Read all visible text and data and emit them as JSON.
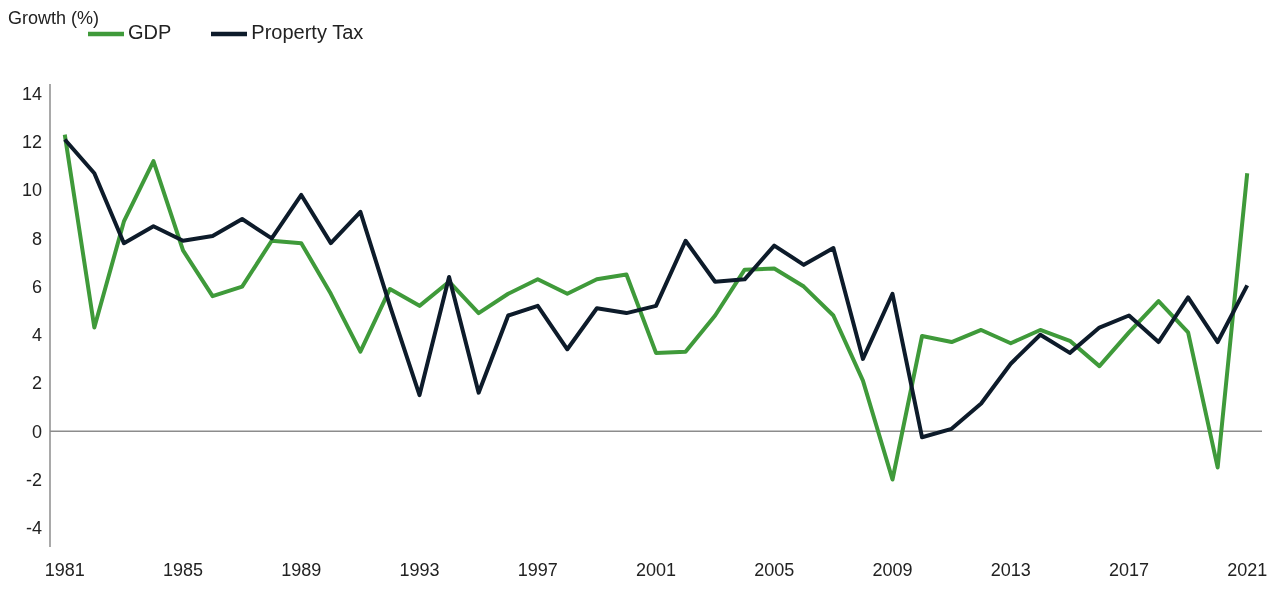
{
  "chart_data": {
    "type": "line",
    "ylabel": "Growth (%)",
    "x": [
      1981,
      1982,
      1983,
      1984,
      1985,
      1986,
      1987,
      1988,
      1989,
      1990,
      1991,
      1992,
      1993,
      1994,
      1995,
      1996,
      1997,
      1998,
      1999,
      2000,
      2001,
      2002,
      2003,
      2004,
      2005,
      2006,
      2007,
      2008,
      2009,
      2010,
      2011,
      2012,
      2013,
      2014,
      2015,
      2016,
      2017,
      2018,
      2019,
      2020,
      2021
    ],
    "series": [
      {
        "name": "GDP",
        "color": "#3f9a3a",
        "values": [
          12.3,
          4.3,
          8.7,
          11.2,
          7.5,
          5.6,
          6.0,
          7.9,
          7.8,
          5.7,
          3.3,
          5.9,
          5.2,
          6.2,
          4.9,
          5.7,
          6.3,
          5.7,
          6.3,
          6.5,
          3.25,
          3.3,
          4.8,
          6.7,
          6.75,
          6.0,
          4.8,
          2.1,
          -2.0,
          3.95,
          3.7,
          4.2,
          3.65,
          4.2,
          3.75,
          2.7,
          4.1,
          5.4,
          4.1,
          -1.5,
          10.7
        ]
      },
      {
        "name": "Property Tax",
        "color": "#0d1b2a",
        "values": [
          12.1,
          10.7,
          7.8,
          8.5,
          7.9,
          8.1,
          8.8,
          8.0,
          9.8,
          7.8,
          9.1,
          5.2,
          1.5,
          6.4,
          1.6,
          4.8,
          5.2,
          3.4,
          5.1,
          4.9,
          5.2,
          7.9,
          6.2,
          6.3,
          7.7,
          6.9,
          7.6,
          3.0,
          5.7,
          -0.25,
          0.1,
          1.15,
          2.8,
          4.0,
          3.25,
          4.3,
          4.8,
          3.7,
          5.55,
          3.7,
          6.05
        ]
      }
    ],
    "xlim": [
      1980.5,
      2021.5
    ],
    "xticks": [
      1981,
      1985,
      1989,
      1993,
      1997,
      2001,
      2005,
      2009,
      2013,
      2017,
      2021
    ],
    "ylim": [
      -4.8,
      14.4
    ],
    "yticks": [
      -4,
      -2,
      0,
      2,
      4,
      6,
      8,
      10,
      12,
      14
    ],
    "ref_lines": [
      {
        "axis": "y",
        "value": 0,
        "color": "#8c8c8c"
      }
    ],
    "grid": false,
    "legend": "top left",
    "marker": "none",
    "line_style": "solid"
  }
}
